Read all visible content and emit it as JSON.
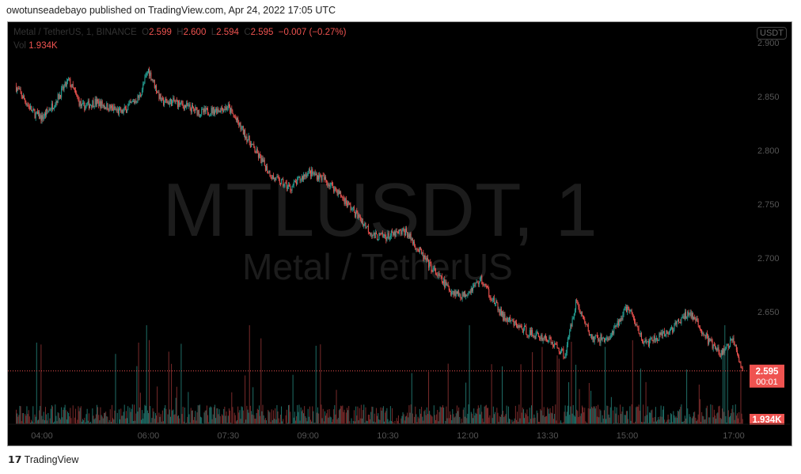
{
  "publish_line": "owotunseadebayo published on TradingView.com, Apr 24, 2022 17:05 UTC",
  "legend": {
    "symbol": "Metal / TetherUS, 1, BINANCE",
    "o_label": "O",
    "o": "2.599",
    "h_label": "H",
    "h": "2.600",
    "l_label": "L",
    "l": "2.594",
    "c_label": "C",
    "c": "2.595",
    "change": "−0.007 (−0.27%)",
    "vol_label": "Vol",
    "vol": "1.934K"
  },
  "currency_badge": "USDT",
  "watermark": {
    "ticker": "MTLUSDT, 1",
    "name": "Metal / TetherUS"
  },
  "price_tag": {
    "price": "2.595",
    "countdown": "00:01"
  },
  "volume_tag": "1.934K",
  "footer_logo": "TradingView",
  "colors": {
    "up": "#26a69a",
    "down": "#ef5350",
    "bg": "#000000"
  },
  "chart_data": {
    "type": "candlestick",
    "title": "Metal / TetherUS, 1, BINANCE",
    "y_ticks": [
      "2.900",
      "2.850",
      "2.800",
      "2.750",
      "2.700",
      "2.650"
    ],
    "y_tick_values": [
      2.9,
      2.85,
      2.8,
      2.75,
      2.7,
      2.65
    ],
    "x_ticks": [
      "04:00",
      "06:00",
      "07:30",
      "09:00",
      "10:30",
      "12:00",
      "13:30",
      "15:00",
      "17:00"
    ],
    "x_tick_minutes": [
      240,
      360,
      450,
      540,
      630,
      720,
      810,
      900,
      1020
    ],
    "ylim": [
      2.58,
      2.89
    ],
    "xlim_minutes": [
      210,
      1030
    ],
    "price_path": [
      [
        210,
        2.86
      ],
      [
        230,
        2.835
      ],
      [
        240,
        2.83
      ],
      [
        255,
        2.845
      ],
      [
        270,
        2.865
      ],
      [
        285,
        2.84
      ],
      [
        300,
        2.845
      ],
      [
        330,
        2.835
      ],
      [
        350,
        2.85
      ],
      [
        360,
        2.875
      ],
      [
        375,
        2.845
      ],
      [
        390,
        2.845
      ],
      [
        420,
        2.835
      ],
      [
        450,
        2.84
      ],
      [
        465,
        2.82
      ],
      [
        480,
        2.8
      ],
      [
        500,
        2.775
      ],
      [
        520,
        2.765
      ],
      [
        540,
        2.78
      ],
      [
        555,
        2.775
      ],
      [
        570,
        2.765
      ],
      [
        590,
        2.745
      ],
      [
        615,
        2.72
      ],
      [
        630,
        2.72
      ],
      [
        650,
        2.725
      ],
      [
        675,
        2.695
      ],
      [
        700,
        2.67
      ],
      [
        715,
        2.665
      ],
      [
        735,
        2.68
      ],
      [
        760,
        2.645
      ],
      [
        790,
        2.63
      ],
      [
        810,
        2.625
      ],
      [
        830,
        2.61
      ],
      [
        842,
        2.66
      ],
      [
        860,
        2.625
      ],
      [
        880,
        2.625
      ],
      [
        900,
        2.655
      ],
      [
        920,
        2.62
      ],
      [
        945,
        2.63
      ],
      [
        970,
        2.65
      ],
      [
        990,
        2.625
      ],
      [
        1005,
        2.61
      ],
      [
        1020,
        2.625
      ],
      [
        1030,
        2.595
      ]
    ],
    "last_price": 2.595,
    "last_volume": "1.934K"
  }
}
